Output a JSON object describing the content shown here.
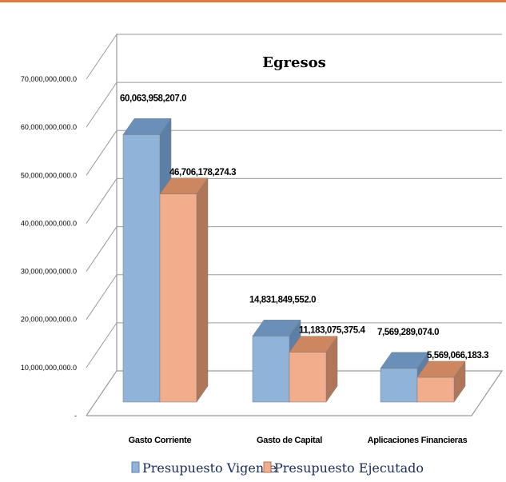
{
  "colors": {
    "border_top": "#e07a3a",
    "series_1_face": "#8fb3d9",
    "series_1_top": "#6a8fb8",
    "series_1_side": "#5d7fa6",
    "series_2_face": "#f2ae8c",
    "series_2_top": "#cc8660",
    "series_2_side": "#b0765a",
    "grid": "#9a9a9a"
  },
  "chart_data": {
    "type": "bar",
    "title": "Egresos",
    "categories": [
      "Gasto Corriente",
      "Gasto de Capital",
      "Aplicaciones Financieras"
    ],
    "series": [
      {
        "name": "Presupuesto Vigente",
        "values": [
          60063958207.0,
          14831849552.0,
          7569289074.0
        ],
        "labels": [
          "60,063,958,207.0",
          "14,831,849,552.0",
          "7,569,289,074.0"
        ]
      },
      {
        "name": "Presupuesto Ejecutado",
        "values": [
          46706178274.3,
          11183075375.4,
          5569066183.3
        ],
        "labels": [
          "46,706,178,274.3",
          "11,183,075,375.4",
          "5,569,066,183.3"
        ]
      }
    ],
    "ylim": [
      0,
      70000000000
    ],
    "y_ticks": [
      0,
      10000000000,
      20000000000,
      30000000000,
      40000000000,
      50000000000,
      60000000000,
      70000000000
    ],
    "y_tick_labels": [
      "-",
      "10,000,000,000.0",
      "20,000,000,000.0",
      "30,000,000,000.0",
      "40,000,000,000.0",
      "50,000,000,000.0",
      "60,000,000,000.0",
      "70,000,000,000.0"
    ],
    "grid": true,
    "legend_position": "bottom"
  }
}
